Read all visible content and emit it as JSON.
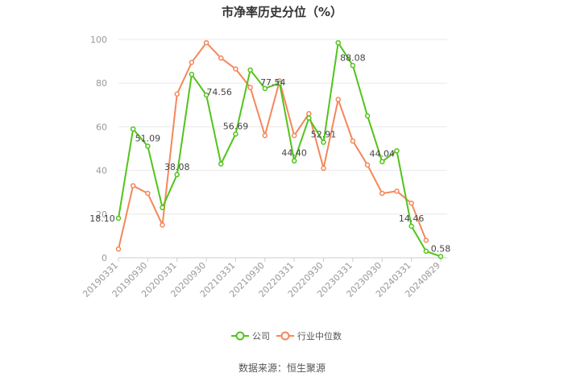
{
  "title": "市净率历史分位（%）",
  "source": "数据来源：恒生聚源",
  "colors": {
    "company": "#52c41a",
    "industry": "#f4875a",
    "grid": "#e8e8e8",
    "axis": "#cccccc"
  },
  "legend": [
    {
      "name": "公司",
      "icon": "circle-line-icon"
    },
    {
      "name": "行业中位数",
      "icon": "circle-line-icon"
    }
  ],
  "chart_data": {
    "type": "line",
    "title": "市净率历史分位（%）",
    "xlabel": "",
    "ylabel": "",
    "ylim": [
      0,
      100
    ],
    "yticks": [
      0,
      20,
      40,
      60,
      80,
      100
    ],
    "grid": true,
    "legend_position": "bottom",
    "x": [
      "20190331",
      "20190630",
      "20190930",
      "20191231",
      "20200331",
      "20200630",
      "20200930",
      "20201231",
      "20210331",
      "20210630",
      "20210930",
      "20211231",
      "20220331",
      "20220630",
      "20220930",
      "20221231",
      "20230331",
      "20230630",
      "20230930",
      "20231231",
      "20240331",
      "20240630",
      "20240829"
    ],
    "xtick_labels": [
      "20190331",
      "20190930",
      "20200331",
      "20200930",
      "20210331",
      "20210930",
      "20220331",
      "20220930",
      "20230331",
      "20230930",
      "20240331",
      "20240829"
    ],
    "series": [
      {
        "name": "公司",
        "values": [
          18.1,
          59,
          51.09,
          23,
          38.08,
          84,
          74.56,
          43,
          56.69,
          86,
          77.54,
          80,
          44.4,
          64,
          52.91,
          98.5,
          88.08,
          65,
          44.04,
          49,
          14.46,
          3,
          0.58
        ],
        "labels": [
          "18.10",
          null,
          "51.09",
          null,
          "38.08",
          null,
          "74.56",
          null,
          "56.69",
          null,
          "77.54",
          null,
          "44.40",
          null,
          "52.91",
          null,
          "88.08",
          null,
          "44.04",
          null,
          "14.46",
          null,
          "0.58"
        ]
      },
      {
        "name": "行业中位数",
        "values": [
          4,
          33,
          29.5,
          15,
          75,
          89.5,
          98.5,
          91.5,
          86.5,
          78,
          56,
          81,
          56,
          66,
          41,
          72.5,
          53.5,
          42.5,
          29.5,
          30.5,
          25,
          8,
          null
        ]
      }
    ]
  }
}
